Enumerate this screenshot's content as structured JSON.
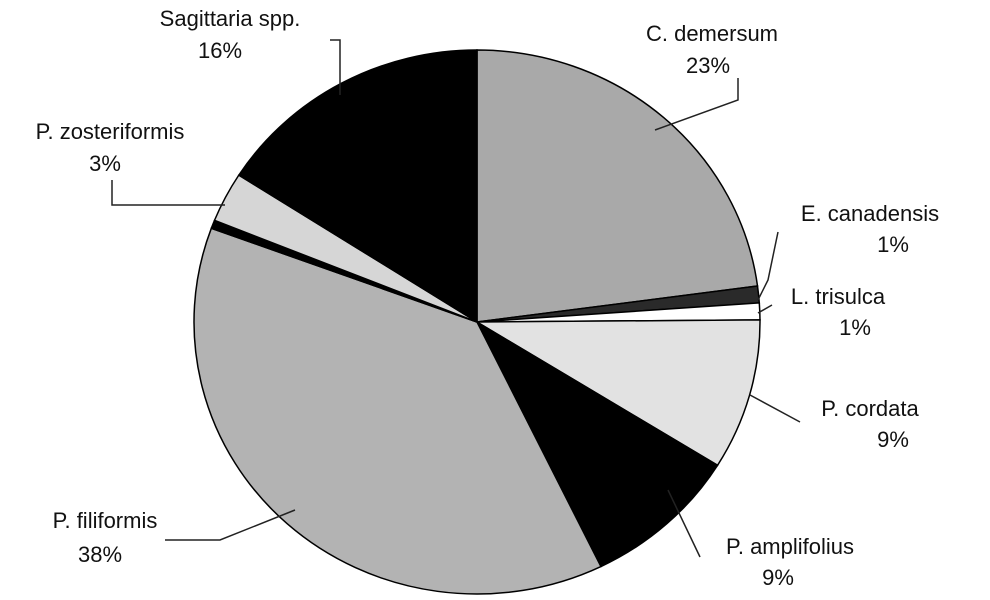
{
  "chart_data": {
    "type": "pie",
    "categories": [
      "C. demersum",
      "E. canadensis",
      "L. trisulca",
      "P. cordata",
      "P. amplifolius",
      "P. filiformis",
      null,
      "P. zosteriformis",
      "Sagittaria spp."
    ],
    "values": [
      23,
      1,
      1,
      9,
      9,
      38,
      0.5,
      3,
      16
    ],
    "value_labels": [
      "23%",
      "1%",
      "1%",
      "9%",
      "9%",
      "38%",
      null,
      "3%",
      "16%"
    ],
    "colors": [
      "#a9a9a9",
      "#2a2a2a",
      "#ffffff",
      "#e2e2e2",
      "#000000",
      "#b3b3b3",
      "#000000",
      "#d6d6d6",
      "#000000"
    ]
  }
}
